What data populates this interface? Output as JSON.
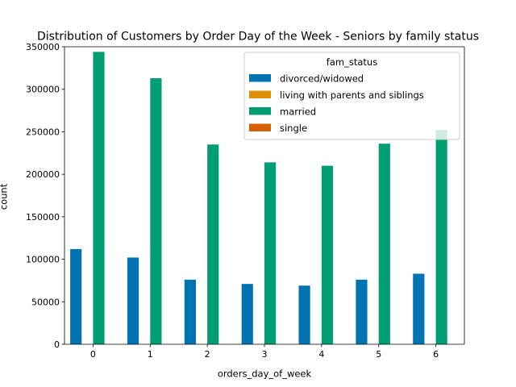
{
  "chart_data": {
    "type": "bar",
    "title": "Distribution of Customers by Order Day of the Week - Seniors by family status",
    "xlabel": "orders_day_of_week",
    "ylabel": "count",
    "categories": [
      "0",
      "1",
      "2",
      "3",
      "4",
      "5",
      "6"
    ],
    "ylim": [
      0,
      350000
    ],
    "yticks": [
      0,
      50000,
      100000,
      150000,
      200000,
      250000,
      300000,
      350000
    ],
    "legend": {
      "title": "fam_status",
      "placement": "top-right"
    },
    "grid": false,
    "series": [
      {
        "name": "divorced/widowed",
        "color": "#0173b2",
        "values": [
          112000,
          102000,
          76000,
          71000,
          69000,
          76000,
          83000
        ]
      },
      {
        "name": "living with parents and siblings",
        "color": "#de8f05",
        "values": [
          0,
          0,
          0,
          0,
          0,
          0,
          0
        ]
      },
      {
        "name": "married",
        "color": "#029e73",
        "values": [
          344000,
          313000,
          235000,
          214000,
          210000,
          236000,
          252000
        ]
      },
      {
        "name": "single",
        "color": "#d55e00",
        "values": [
          0,
          0,
          0,
          0,
          0,
          0,
          0
        ]
      }
    ]
  }
}
